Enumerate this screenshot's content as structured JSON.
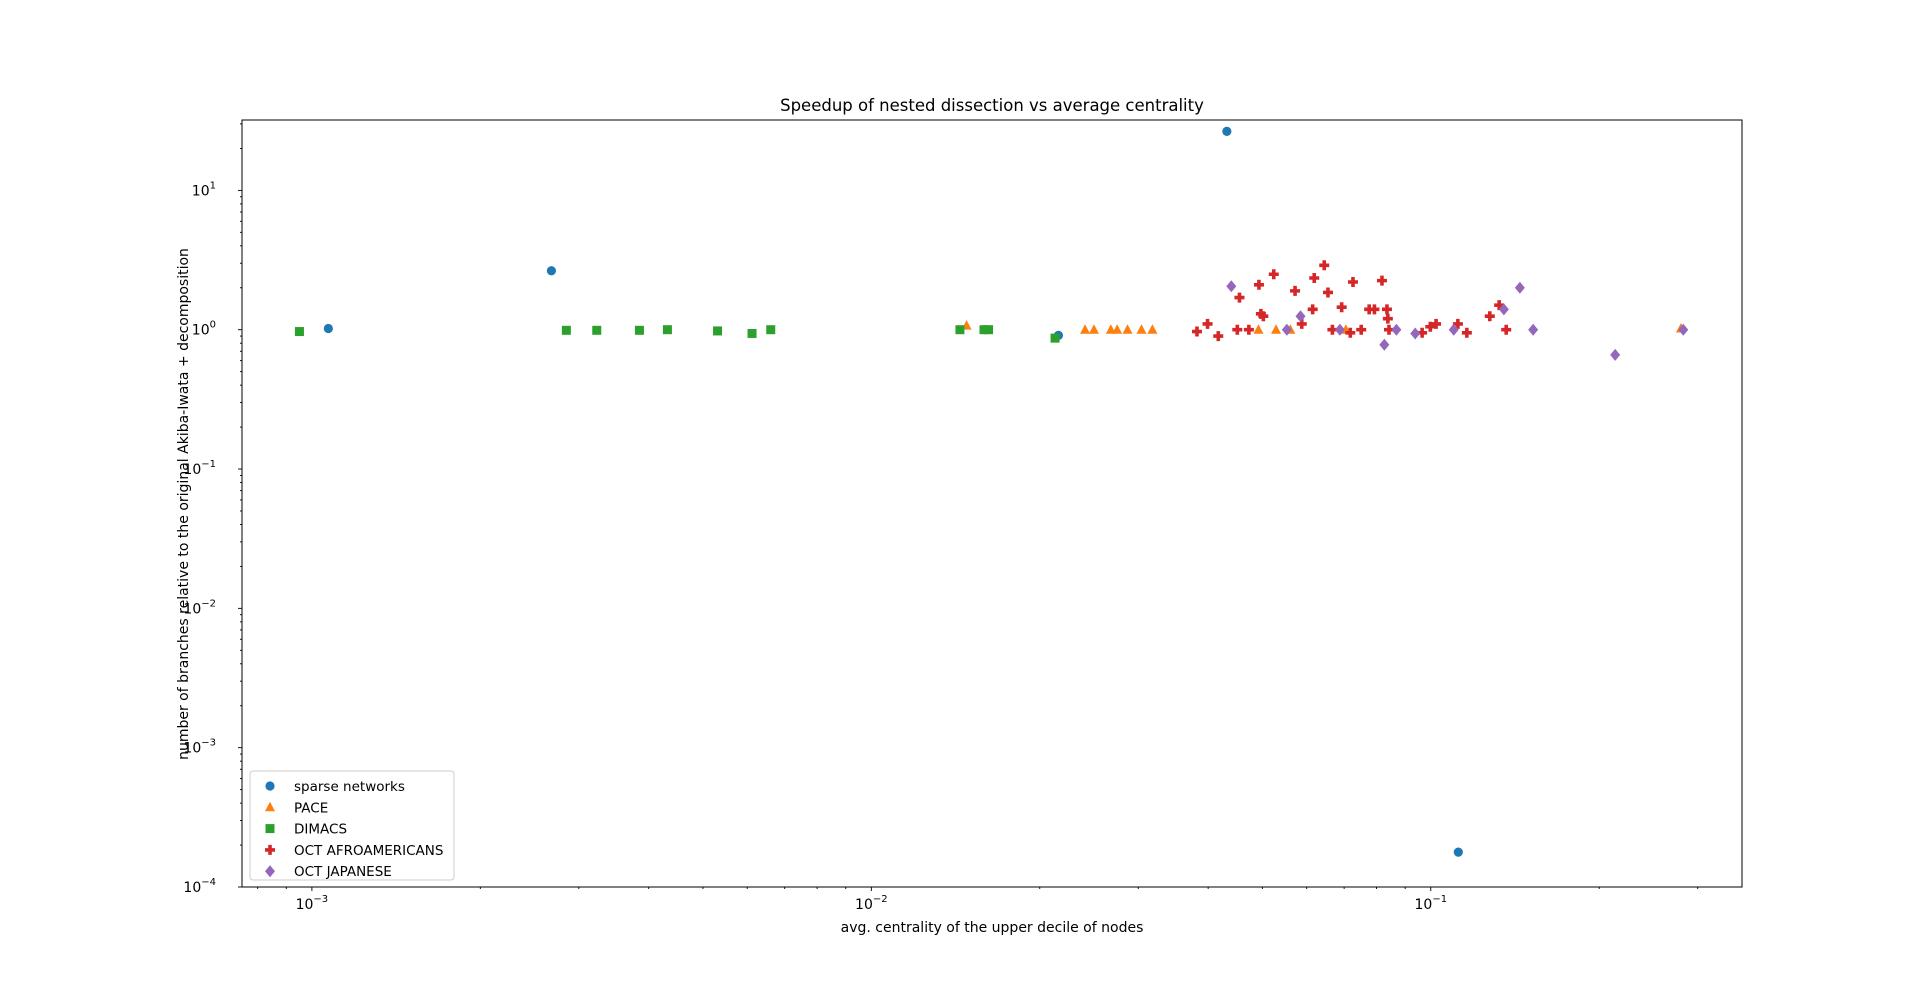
{
  "chart_data": {
    "type": "scatter",
    "title": "Speedup of nested dissection vs average centrality",
    "xlabel": "avg. centrality of the upper decile of nodes",
    "ylabel": "number of branches relative to the original Akiba-Iwata + decomposition",
    "xscale": "log",
    "yscale": "log",
    "xlim": [
      0.00075,
      0.36
    ],
    "ylim": [
      0.0001,
      32
    ],
    "xticks": [
      {
        "value": 0.001,
        "base": "10",
        "exp": "−3"
      },
      {
        "value": 0.01,
        "base": "10",
        "exp": "−2"
      },
      {
        "value": 0.1,
        "base": "10",
        "exp": "−1"
      }
    ],
    "yticks": [
      {
        "value": 0.0001,
        "base": "10",
        "exp": "−4"
      },
      {
        "value": 0.001,
        "base": "10",
        "exp": "−3"
      },
      {
        "value": 0.01,
        "base": "10",
        "exp": "−2"
      },
      {
        "value": 0.1,
        "base": "10",
        "exp": "−1"
      },
      {
        "value": 1,
        "base": "10",
        "exp": "0"
      },
      {
        "value": 10,
        "base": "10",
        "exp": "1"
      }
    ],
    "grid": false,
    "legend_position": "lower-left",
    "series": [
      {
        "name": "sparse networks",
        "marker": "circle",
        "color": "#1f77b4",
        "points": [
          [
            0.00107,
            1.02
          ],
          [
            0.00268,
            2.65
          ],
          [
            0.0216,
            0.91
          ],
          [
            0.0432,
            26.5
          ],
          [
            0.112,
            0.000178
          ]
        ]
      },
      {
        "name": "PACE",
        "marker": "triangle",
        "color": "#ff7f0e",
        "points": [
          [
            0.0148,
            1.07
          ],
          [
            0.0241,
            1.0
          ],
          [
            0.025,
            1.0
          ],
          [
            0.0268,
            1.0
          ],
          [
            0.0275,
            1.0
          ],
          [
            0.0287,
            1.0
          ],
          [
            0.0304,
            1.0
          ],
          [
            0.0318,
            1.0
          ],
          [
            0.0492,
            1.0
          ],
          [
            0.0529,
            1.0
          ],
          [
            0.0561,
            1.0
          ],
          [
            0.0705,
            1.0
          ],
          [
            0.28,
            1.02
          ]
        ]
      },
      {
        "name": "DIMACS",
        "marker": "square",
        "color": "#2ca02c",
        "points": [
          [
            0.00095,
            0.97
          ],
          [
            0.00285,
            0.99
          ],
          [
            0.00323,
            0.99
          ],
          [
            0.00385,
            0.99
          ],
          [
            0.00432,
            1.0
          ],
          [
            0.00531,
            0.98
          ],
          [
            0.00612,
            0.94
          ],
          [
            0.00661,
            1.0
          ],
          [
            0.0144,
            1.0
          ],
          [
            0.0159,
            1.0
          ],
          [
            0.0162,
            1.0
          ],
          [
            0.0213,
            0.87
          ]
        ]
      },
      {
        "name": "OCT AFROAMERICANS",
        "marker": "plus",
        "color": "#d62728",
        "points": [
          [
            0.0382,
            0.97
          ],
          [
            0.0399,
            1.1
          ],
          [
            0.0417,
            0.9
          ],
          [
            0.0451,
            1.0
          ],
          [
            0.0455,
            1.7
          ],
          [
            0.0473,
            1.0
          ],
          [
            0.0493,
            2.1
          ],
          [
            0.0497,
            1.3
          ],
          [
            0.0502,
            1.25
          ],
          [
            0.0524,
            2.5
          ],
          [
            0.0572,
            1.9
          ],
          [
            0.0588,
            1.1
          ],
          [
            0.0615,
            1.4
          ],
          [
            0.0619,
            2.35
          ],
          [
            0.0645,
            2.9
          ],
          [
            0.0655,
            1.85
          ],
          [
            0.0667,
            1.0
          ],
          [
            0.0693,
            1.45
          ],
          [
            0.0718,
            0.95
          ],
          [
            0.0726,
            2.2
          ],
          [
            0.0751,
            1.0
          ],
          [
            0.0776,
            1.4
          ],
          [
            0.0793,
            1.4
          ],
          [
            0.0818,
            2.25
          ],
          [
            0.0835,
            1.4
          ],
          [
            0.0838,
            1.2
          ],
          [
            0.0842,
            1.0
          ],
          [
            0.0965,
            0.95
          ],
          [
            0.0998,
            1.05
          ],
          [
            0.1022,
            1.1
          ],
          [
            0.1118,
            1.1
          ],
          [
            0.116,
            0.95
          ],
          [
            0.1275,
            1.25
          ],
          [
            0.1325,
            1.5
          ],
          [
            0.1364,
            1.0
          ]
        ]
      },
      {
        "name": "OCT JAPANESE",
        "marker": "diamond",
        "color": "#9467bd",
        "points": [
          [
            0.044,
            2.05
          ],
          [
            0.0553,
            1.0
          ],
          [
            0.0585,
            1.25
          ],
          [
            0.0688,
            1.0
          ],
          [
            0.0826,
            0.78
          ],
          [
            0.0868,
            1.0
          ],
          [
            0.0938,
            0.94
          ],
          [
            0.1099,
            1.0
          ],
          [
            0.1351,
            1.4
          ],
          [
            0.1443,
            2.0
          ],
          [
            0.1524,
            1.0
          ],
          [
            0.2136,
            0.66
          ],
          [
            0.2827,
            1.0
          ]
        ]
      }
    ]
  }
}
